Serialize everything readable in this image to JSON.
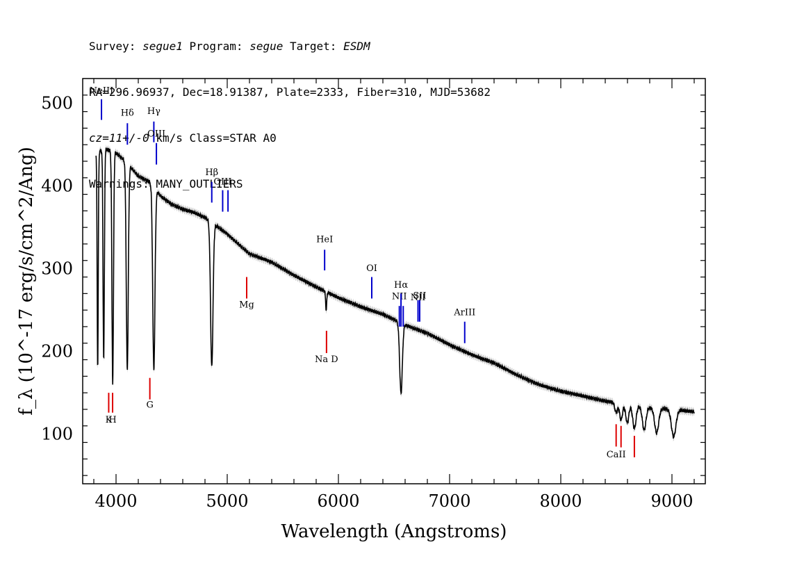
{
  "header": {
    "line1": {
      "survey_label": "Survey: ",
      "survey": "segue1",
      "program_label": " Program: ",
      "program": "segue",
      "target_label": " Target: ",
      "target": "ESDM"
    },
    "line2": "RA=296.96937, Dec=18.91387, Plate=2333, Fiber=310, MJD=53682",
    "line3": {
      "cz": "cz=11+/-0",
      "rest": " km/s Class=STAR A0"
    },
    "line4": "Warnings: MANY_OUTLIERS"
  },
  "chart_data": {
    "type": "line",
    "xlabel": "Wavelength (Angstroms)",
    "ylabel": "f_λ (10^-17 erg/s/cm^2/Ang)",
    "xlim": [
      3700,
      9300
    ],
    "ylim": [
      40,
      530
    ],
    "x_ticks": [
      4000,
      5000,
      6000,
      7000,
      8000,
      9000
    ],
    "y_ticks": [
      100,
      200,
      300,
      400,
      500
    ],
    "continuum": [
      [
        3820,
        440
      ],
      [
        3900,
        445
      ],
      [
        4000,
        440
      ],
      [
        4100,
        428
      ],
      [
        4200,
        412
      ],
      [
        4300,
        405
      ],
      [
        4400,
        388
      ],
      [
        4500,
        378
      ],
      [
        4600,
        372
      ],
      [
        4700,
        368
      ],
      [
        4800,
        362
      ],
      [
        5000,
        342
      ],
      [
        5200,
        318
      ],
      [
        5400,
        308
      ],
      [
        5600,
        292
      ],
      [
        5800,
        278
      ],
      [
        6000,
        265
      ],
      [
        6200,
        254
      ],
      [
        6400,
        245
      ],
      [
        6600,
        232
      ],
      [
        6800,
        222
      ],
      [
        7000,
        208
      ],
      [
        7200,
        196
      ],
      [
        7400,
        186
      ],
      [
        7600,
        172
      ],
      [
        7800,
        160
      ],
      [
        8000,
        152
      ],
      [
        8200,
        146
      ],
      [
        8400,
        140
      ],
      [
        8600,
        136
      ],
      [
        8800,
        132
      ],
      [
        9000,
        130
      ],
      [
        9200,
        127
      ]
    ],
    "absorption_lines": [
      {
        "x": 3835,
        "depth": 260,
        "width": 5
      },
      {
        "x": 3889,
        "depth": 255,
        "width": 6
      },
      {
        "x": 3970,
        "depth": 280,
        "width": 7
      },
      {
        "x": 4101,
        "depth": 250,
        "width": 9
      },
      {
        "x": 4340,
        "depth": 220,
        "width": 10
      },
      {
        "x": 4861,
        "depth": 175,
        "width": 11
      },
      {
        "x": 5890,
        "depth": 22,
        "width": 5
      },
      {
        "x": 6563,
        "depth": 85,
        "width": 12
      },
      {
        "x": 8498,
        "depth": 12,
        "width": 12
      },
      {
        "x": 8542,
        "depth": 20,
        "width": 13
      },
      {
        "x": 8598,
        "depth": 22,
        "width": 14
      },
      {
        "x": 8662,
        "depth": 28,
        "width": 15
      },
      {
        "x": 8750,
        "depth": 28,
        "width": 16
      },
      {
        "x": 8862,
        "depth": 30,
        "width": 18
      },
      {
        "x": 9015,
        "depth": 33,
        "width": 20
      }
    ],
    "emission_markers": [
      {
        "label": "NeIII",
        "x": 3869,
        "y_top": 505,
        "y_bottom": 480,
        "label_y": 512
      },
      {
        "label": "Hδ",
        "x": 4102,
        "y_top": 476,
        "y_bottom": 450,
        "label_y": 485
      },
      {
        "label": "Hγ",
        "x": 4340,
        "y_top": 478,
        "y_bottom": 453,
        "label_y": 487
      },
      {
        "label": "OIII",
        "x": 4363,
        "y_top": 452,
        "y_bottom": 426,
        "label_y": 460
      },
      {
        "label": "Hβ",
        "x": 4861,
        "y_top": 405,
        "y_bottom": 380,
        "label_y": 413
      },
      {
        "label": "OIII",
        "x": 4959,
        "y_top": 395,
        "y_bottom": 369,
        "label_y": 402
      },
      {
        "label": "",
        "x": 5007,
        "y_top": 395,
        "y_bottom": 369,
        "label_y": 0
      },
      {
        "label": "HeI",
        "x": 5876,
        "y_top": 323,
        "y_bottom": 298,
        "label_y": 332
      },
      {
        "label": "OI",
        "x": 6300,
        "y_top": 290,
        "y_bottom": 264,
        "label_y": 297
      },
      {
        "label": "NII",
        "x": 6548,
        "y_top": 255,
        "y_bottom": 230,
        "label_y": 263
      },
      {
        "label": "Hα",
        "x": 6563,
        "y_top": 270,
        "y_bottom": 230,
        "label_y": 277
      },
      {
        "label": "",
        "x": 6583,
        "y_top": 255,
        "y_bottom": 230,
        "label_y": 0
      },
      {
        "label": "NII",
        "x": 6716,
        "y_top": 262,
        "y_bottom": 236,
        "label_y": 262
      },
      {
        "label": "SII",
        "x": 6731,
        "y_top": 262,
        "y_bottom": 236,
        "label_y": 264
      },
      {
        "label": "ArIII",
        "x": 7136,
        "y_top": 236,
        "y_bottom": 210,
        "label_y": 244
      }
    ],
    "absorption_markers": [
      {
        "label": "Mg",
        "x": 5175,
        "y_top": 290,
        "y_bottom": 264,
        "label_y": 253
      },
      {
        "label": "Na D",
        "x": 5893,
        "y_top": 225,
        "y_bottom": 198,
        "label_y": 187
      },
      {
        "label": "G",
        "x": 4304,
        "y_top": 168,
        "y_bottom": 142,
        "label_y": 132
      },
      {
        "label": "K",
        "x": 3934,
        "y_top": 150,
        "y_bottom": 126,
        "label_y": 114
      },
      {
        "label": "H",
        "x": 3969,
        "y_top": 150,
        "y_bottom": 126,
        "label_y": 114
      },
      {
        "label": "CaII",
        "x": 8498,
        "y_top": 112,
        "y_bottom": 85,
        "label_y": 72
      },
      {
        "label": "",
        "x": 8542,
        "y_top": 110,
        "y_bottom": 84,
        "label_y": 0
      },
      {
        "label": "",
        "x": 8662,
        "y_top": 98,
        "y_bottom": 72,
        "label_y": 0
      }
    ],
    "colors": {
      "emission": "#0000cc",
      "absorption": "#dd0000",
      "spectrum": "#000000",
      "error_band": "#a0a0a0"
    },
    "grid": false,
    "legend": "none"
  }
}
